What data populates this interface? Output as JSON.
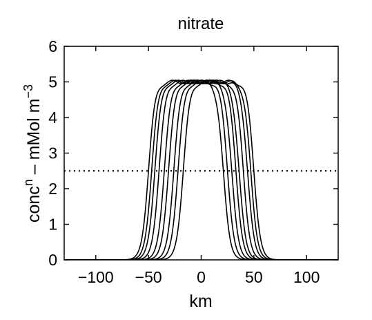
{
  "chart_data": {
    "type": "line",
    "title": "nitrate",
    "xlabel": "km",
    "ylabel": {
      "base": "conc",
      "sup1": "n",
      "middle": " – mMol m",
      "sup2": "−3"
    },
    "xlim": [
      -130,
      130
    ],
    "ylim": [
      0,
      6
    ],
    "xticks": [
      -100,
      -50,
      0,
      50,
      100
    ],
    "xtick_labels": [
      "−100",
      "−50",
      "0",
      "50",
      "100"
    ],
    "yticks": [
      0,
      1,
      2,
      3,
      4,
      5,
      6
    ],
    "ytick_labels": [
      "0",
      "1",
      "2",
      "3",
      "4",
      "5",
      "6"
    ],
    "grid": false,
    "reference_line": {
      "y": 2.5,
      "style": "dotted"
    },
    "plateau_value": 5,
    "profiles": [
      {
        "left_edge_km": -50,
        "right_edge_km": 50
      },
      {
        "left_edge_km": -47,
        "right_edge_km": 47
      },
      {
        "left_edge_km": -44,
        "right_edge_km": 44
      },
      {
        "left_edge_km": -40,
        "right_edge_km": 40
      },
      {
        "left_edge_km": -35,
        "right_edge_km": 36
      },
      {
        "left_edge_km": -31,
        "right_edge_km": 33
      },
      {
        "left_edge_km": -26,
        "right_edge_km": 29
      },
      {
        "left_edge_km": -22,
        "right_edge_km": 25
      },
      {
        "left_edge_km": -17,
        "right_edge_km": 21
      }
    ]
  }
}
